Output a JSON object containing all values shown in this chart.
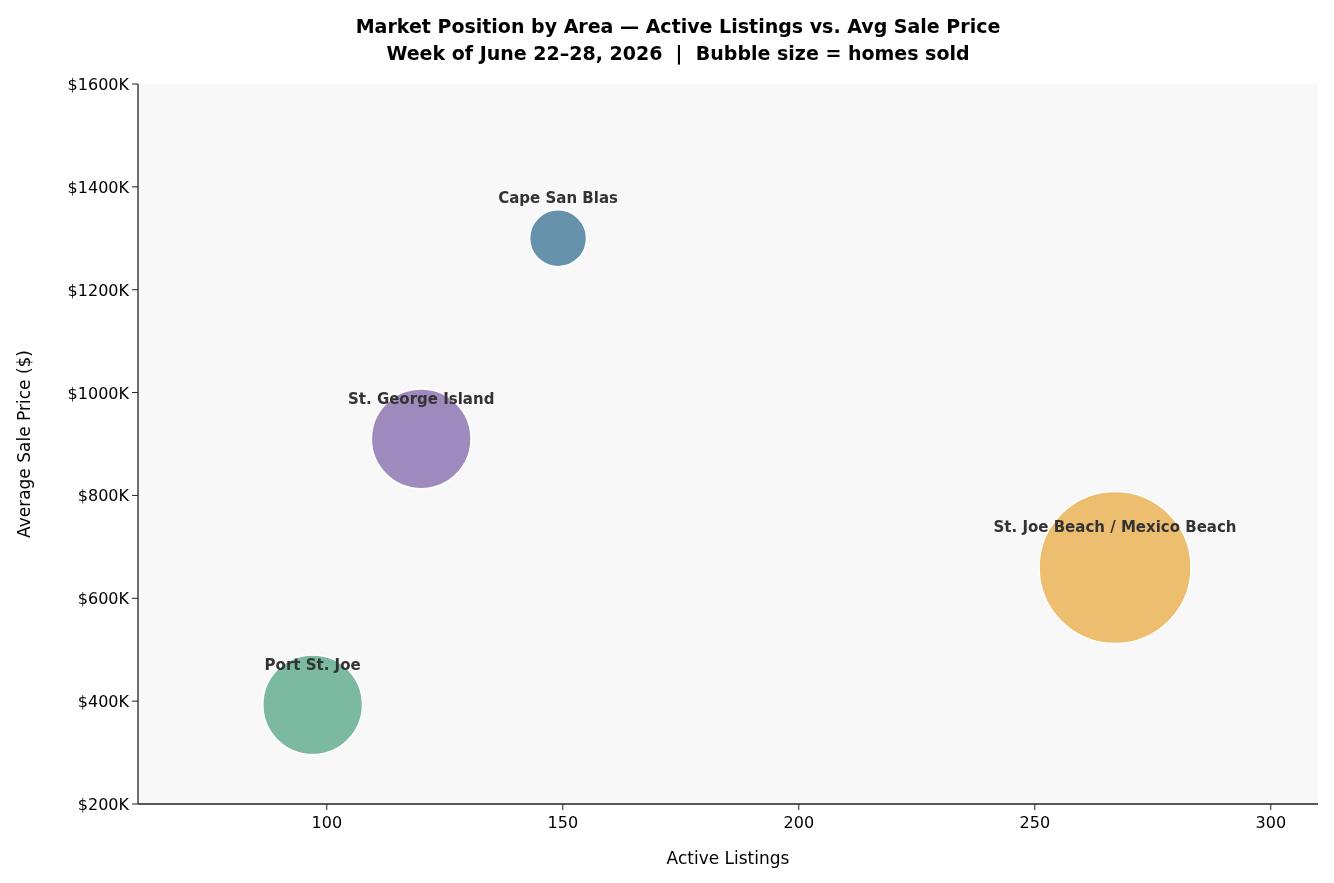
{
  "chart_data": {
    "type": "bubble",
    "title": "Market Position by Area — Active Listings vs. Avg Sale Price",
    "subtitle": "Week of June 22–28, 2026  |  Bubble size = homes sold",
    "xlabel": "Active Listings",
    "ylabel": "Average Sale Price ($)",
    "xlim": [
      60,
      310
    ],
    "xticks": [
      100,
      150,
      200,
      250,
      300
    ],
    "ylim": [
      200,
      1600
    ],
    "yticks": [
      {
        "value": 200,
        "label": "$200K"
      },
      {
        "value": 400,
        "label": "$400K"
      },
      {
        "value": 600,
        "label": "$600K"
      },
      {
        "value": 800,
        "label": "$800K"
      },
      {
        "value": 1000,
        "label": "$1000K"
      },
      {
        "value": 1200,
        "label": "$1200K"
      },
      {
        "value": 1400,
        "label": "$1400K"
      },
      {
        "value": 1600,
        "label": "$1600K"
      }
    ],
    "series": [
      {
        "name": "Cape San Blas",
        "color": "#5f8ca8",
        "x": [
          149
        ],
        "values": [
          1300
        ],
        "sizes": [
          0.14
        ]
      },
      {
        "name": "St. George Island",
        "color": "#9a84bb",
        "x": [
          120
        ],
        "values": [
          910
        ],
        "sizes": [
          0.43
        ]
      },
      {
        "name": "St. Joe Beach / Mexico Beach",
        "color": "#edbb68",
        "x": [
          267
        ],
        "values": [
          660
        ],
        "sizes": [
          1
        ]
      },
      {
        "name": "Port St. Joe",
        "color": "#74b59c",
        "x": [
          97
        ],
        "values": [
          393
        ],
        "sizes": [
          0.43
        ]
      }
    ]
  }
}
